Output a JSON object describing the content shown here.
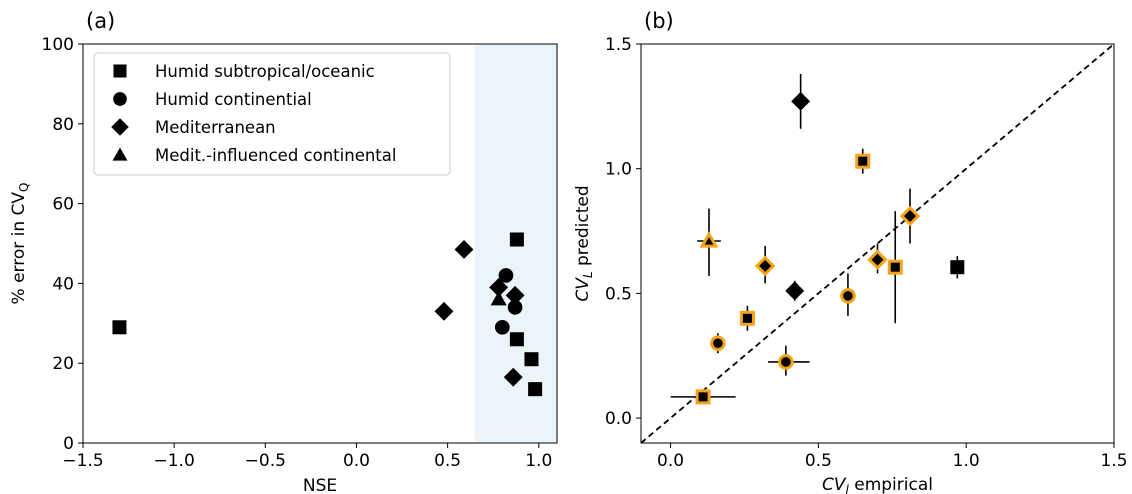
{
  "chart_data": [
    {
      "type": "scatter",
      "panel_label": "(a)",
      "xlabel": "NSE",
      "ylabel_main": "% error in CV",
      "ylabel_sub": "Q",
      "xlim": [
        -1.5,
        1.1
      ],
      "ylim": [
        0,
        100
      ],
      "xticks": [
        -1.5,
        -1.0,
        -0.5,
        0.0,
        0.5,
        1.0
      ],
      "xtick_labels": [
        "−1.5",
        "−1.0",
        "−0.5",
        "0.0",
        "0.5",
        "1.0"
      ],
      "yticks": [
        0,
        20,
        40,
        60,
        80,
        100
      ],
      "ytick_labels": [
        "0",
        "20",
        "40",
        "60",
        "80",
        "100"
      ],
      "shaded_region_x": [
        0.65,
        1.1
      ],
      "shaded_color": "#eaf4f9",
      "legend": {
        "placement": "upper-left",
        "entries": [
          {
            "label": "Humid subtropical/oceanic",
            "marker": "square"
          },
          {
            "label": "Humid continential",
            "marker": "circle"
          },
          {
            "label": "Mediterranean",
            "marker": "diamond"
          },
          {
            "label": "Medit.-influenced continental",
            "marker": "triangle"
          }
        ]
      },
      "points": [
        {
          "x": -1.3,
          "y": 29,
          "marker": "square"
        },
        {
          "x": 0.88,
          "y": 51,
          "marker": "square"
        },
        {
          "x": 0.88,
          "y": 26,
          "marker": "square"
        },
        {
          "x": 0.96,
          "y": 21,
          "marker": "square"
        },
        {
          "x": 0.98,
          "y": 13.5,
          "marker": "square"
        },
        {
          "x": 0.82,
          "y": 42,
          "marker": "circle"
        },
        {
          "x": 0.87,
          "y": 34,
          "marker": "circle"
        },
        {
          "x": 0.8,
          "y": 29,
          "marker": "circle"
        },
        {
          "x": 0.48,
          "y": 33,
          "marker": "diamond"
        },
        {
          "x": 0.59,
          "y": 48.5,
          "marker": "diamond"
        },
        {
          "x": 0.78,
          "y": 39,
          "marker": "diamond"
        },
        {
          "x": 0.87,
          "y": 37,
          "marker": "diamond"
        },
        {
          "x": 0.86,
          "y": 16.5,
          "marker": "diamond"
        },
        {
          "x": 0.78,
          "y": 36,
          "marker": "triangle"
        }
      ]
    },
    {
      "type": "scatter",
      "panel_label": "(b)",
      "xlabel_main": "CV",
      "xlabel_sub": "l",
      "xlabel_suffix": " empirical",
      "ylabel_main": "CV",
      "ylabel_sub": "L",
      "ylabel_suffix": " predicted",
      "xlim": [
        -0.1,
        1.5
      ],
      "ylim": [
        -0.1,
        1.5
      ],
      "xticks": [
        0.0,
        0.5,
        1.0,
        1.5
      ],
      "xtick_labels": [
        "0.0",
        "0.5",
        "1.0",
        "1.5"
      ],
      "yticks": [
        0.0,
        0.5,
        1.0,
        1.5
      ],
      "ytick_labels": [
        "0.0",
        "0.5",
        "1.0",
        "1.5"
      ],
      "reference_line": {
        "style": "dashed",
        "from": [
          -0.1,
          -0.1
        ],
        "to": [
          1.5,
          1.5
        ]
      },
      "highlight_color": "#f5a31a",
      "points": [
        {
          "x": 0.11,
          "y": 0.085,
          "marker": "square",
          "highlight": true,
          "xerr": [
            0.0,
            0.22
          ]
        },
        {
          "x": 0.26,
          "y": 0.4,
          "marker": "square",
          "highlight": true,
          "yerr": [
            0.35,
            0.45
          ]
        },
        {
          "x": 0.65,
          "y": 1.03,
          "marker": "square",
          "highlight": true,
          "yerr": [
            0.98,
            1.08
          ]
        },
        {
          "x": 0.76,
          "y": 0.605,
          "marker": "square",
          "highlight": true,
          "yerr": [
            0.38,
            0.83
          ]
        },
        {
          "x": 0.97,
          "y": 0.605,
          "marker": "square",
          "highlight": false,
          "yerr": [
            0.56,
            0.65
          ]
        },
        {
          "x": 0.16,
          "y": 0.3,
          "marker": "circle",
          "highlight": true,
          "yerr": [
            0.26,
            0.34
          ]
        },
        {
          "x": 0.39,
          "y": 0.225,
          "marker": "circle",
          "highlight": true,
          "xerr": [
            0.33,
            0.47
          ],
          "yerr": [
            0.17,
            0.29
          ]
        },
        {
          "x": 0.6,
          "y": 0.49,
          "marker": "circle",
          "highlight": true,
          "yerr": [
            0.41,
            0.58
          ]
        },
        {
          "x": 0.44,
          "y": 1.27,
          "marker": "diamond",
          "highlight": false,
          "yerr": [
            1.16,
            1.38
          ]
        },
        {
          "x": 0.42,
          "y": 0.51,
          "marker": "diamond",
          "highlight": false,
          "yerr": [
            0.47,
            0.55
          ]
        },
        {
          "x": 0.32,
          "y": 0.61,
          "marker": "diamond",
          "highlight": true,
          "yerr": [
            0.54,
            0.69
          ]
        },
        {
          "x": 0.7,
          "y": 0.635,
          "marker": "diamond",
          "highlight": true,
          "yerr": [
            0.58,
            0.7
          ]
        },
        {
          "x": 0.81,
          "y": 0.81,
          "marker": "diamond",
          "highlight": true,
          "yerr": [
            0.7,
            0.92
          ]
        },
        {
          "x": 0.13,
          "y": 0.71,
          "marker": "triangle",
          "highlight": true,
          "xerr": [
            0.09,
            0.17
          ],
          "yerr": [
            0.57,
            0.84
          ]
        }
      ]
    }
  ]
}
